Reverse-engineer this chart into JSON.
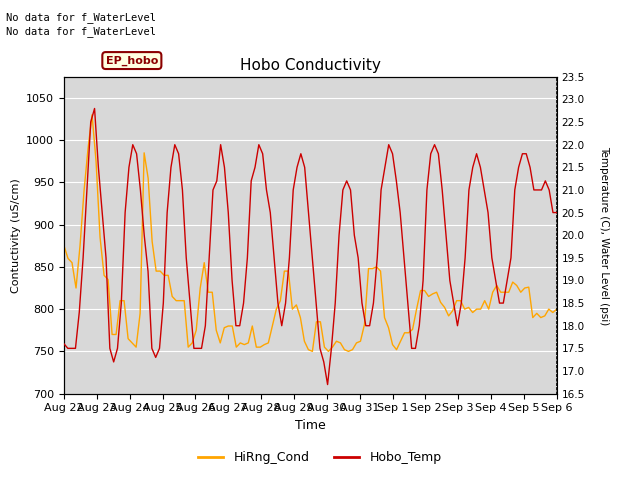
{
  "title": "Hobo Conductivity",
  "xlabel": "Time",
  "ylabel_left": "Contuctivity (uS/cm)",
  "ylabel_right": "Temperature (C), Water Level (psi)",
  "annotation_line1": "No data for f_WaterLevel",
  "annotation_line2": "No data for f_WaterLevel",
  "box_label": "EP_hobo",
  "left_ylim": [
    700,
    1075
  ],
  "right_ylim": [
    16.5,
    23.5
  ],
  "left_yticks": [
    700,
    750,
    800,
    850,
    900,
    950,
    1000,
    1050
  ],
  "right_yticks": [
    16.5,
    17.0,
    17.5,
    18.0,
    18.5,
    19.0,
    19.5,
    20.0,
    20.5,
    21.0,
    21.5,
    22.0,
    22.5,
    23.0,
    23.5
  ],
  "xtick_labels": [
    "Aug 22",
    "Aug 23",
    "Aug 24",
    "Aug 25",
    "Aug 26",
    "Aug 27",
    "Aug 28",
    "Aug 29",
    "Aug 30",
    "Aug 31",
    "Sep 1",
    "Sep 2",
    "Sep 3",
    "Sep 4",
    "Sep 5",
    "Sep 6"
  ],
  "background_color": "#ffffff",
  "plot_bg_color": "#d8d8d8",
  "grid_color": "#ffffff",
  "line1_color": "#FFA500",
  "line2_color": "#CC0000",
  "legend_labels": [
    "HiRng_Cond",
    "Hobo_Temp"
  ],
  "cond_data": [
    875,
    860,
    855,
    825,
    875,
    940,
    990,
    1030,
    975,
    885,
    840,
    835,
    770,
    770,
    810,
    810,
    765,
    760,
    755,
    795,
    985,
    955,
    880,
    845,
    845,
    840,
    840,
    815,
    810,
    810,
    810,
    755,
    760,
    775,
    825,
    855,
    820,
    820,
    775,
    760,
    778,
    780,
    780,
    755,
    760,
    758,
    760,
    780,
    755,
    755,
    758,
    760,
    780,
    800,
    810,
    845,
    845,
    800,
    805,
    790,
    762,
    752,
    750,
    785,
    785,
    755,
    750,
    755,
    762,
    760,
    752,
    750,
    752,
    760,
    762,
    782,
    848,
    848,
    850,
    845,
    790,
    778,
    758,
    752,
    762,
    772,
    772,
    776,
    800,
    822,
    822,
    815,
    818,
    820,
    808,
    802,
    792,
    798,
    810,
    810,
    800,
    802,
    796,
    800,
    800,
    810,
    800,
    820,
    828,
    820,
    820,
    820,
    832,
    828,
    820,
    825,
    826,
    790,
    795,
    790,
    792,
    800,
    796,
    800
  ],
  "temp_data": [
    17.6,
    17.5,
    17.5,
    17.5,
    18.3,
    19.5,
    21.0,
    22.5,
    22.8,
    21.5,
    20.5,
    19.5,
    17.5,
    17.2,
    17.5,
    18.5,
    20.5,
    21.5,
    22.0,
    21.8,
    21.0,
    20.0,
    19.2,
    17.5,
    17.3,
    17.5,
    18.5,
    20.5,
    21.5,
    22.0,
    21.8,
    21.0,
    19.5,
    18.5,
    17.5,
    17.5,
    17.5,
    18.0,
    19.5,
    21.0,
    21.2,
    22.0,
    21.5,
    20.5,
    19.0,
    18.0,
    18.0,
    18.5,
    19.5,
    21.2,
    21.5,
    22.0,
    21.8,
    21.0,
    20.5,
    19.5,
    18.5,
    18.0,
    18.5,
    19.5,
    21.0,
    21.5,
    21.8,
    21.5,
    20.5,
    19.5,
    18.5,
    17.5,
    17.2,
    16.7,
    17.5,
    18.5,
    20.0,
    21.0,
    21.2,
    21.0,
    20.0,
    19.5,
    18.5,
    18.0,
    18.0,
    18.5,
    19.5,
    21.0,
    21.5,
    22.0,
    21.8,
    21.2,
    20.5,
    19.5,
    18.5,
    17.5,
    17.5,
    18.0,
    19.0,
    21.0,
    21.8,
    22.0,
    21.8,
    21.0,
    20.0,
    19.0,
    18.5,
    18.0,
    18.5,
    19.5,
    21.0,
    21.5,
    21.8,
    21.5,
    21.0,
    20.5,
    19.5,
    19.0,
    18.5,
    18.5,
    19.0,
    19.5,
    21.0,
    21.5,
    21.8,
    21.8,
    21.5,
    21.0,
    21.0,
    21.0,
    21.2,
    21.0,
    20.5,
    20.5
  ]
}
